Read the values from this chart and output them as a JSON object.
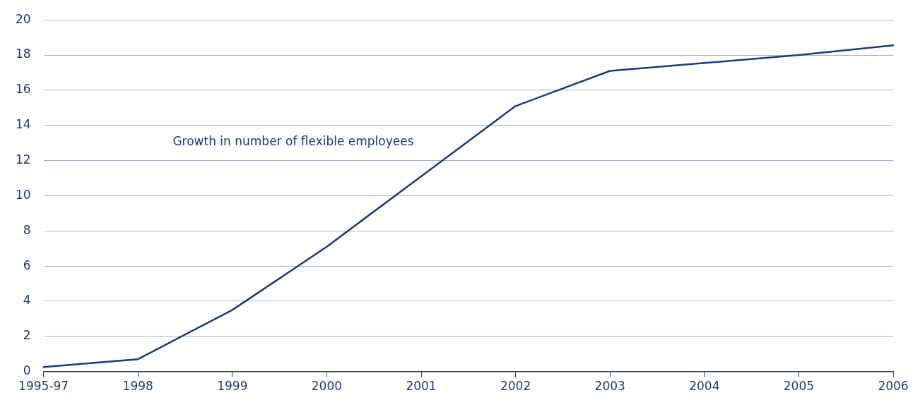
{
  "chart_data": {
    "type": "line",
    "categories": [
      "1995-97",
      "1998",
      "1999",
      "2000",
      "2001",
      "2002",
      "2003",
      "2004",
      "2005",
      "2006"
    ],
    "series": [
      {
        "name": "Growth in number of flexible employees",
        "color": "#1f3a78",
        "values": [
          0.25,
          0.7,
          3.5,
          7.1,
          11.1,
          15.1,
          17.1,
          17.55,
          18.0,
          18.55
        ]
      }
    ],
    "ylim": [
      0,
      20
    ],
    "yticks": [
      0,
      2,
      4,
      6,
      8,
      10,
      12,
      14,
      16,
      18,
      20
    ],
    "grid": "y",
    "legend": false,
    "marker": "none",
    "line_style": "solid"
  }
}
